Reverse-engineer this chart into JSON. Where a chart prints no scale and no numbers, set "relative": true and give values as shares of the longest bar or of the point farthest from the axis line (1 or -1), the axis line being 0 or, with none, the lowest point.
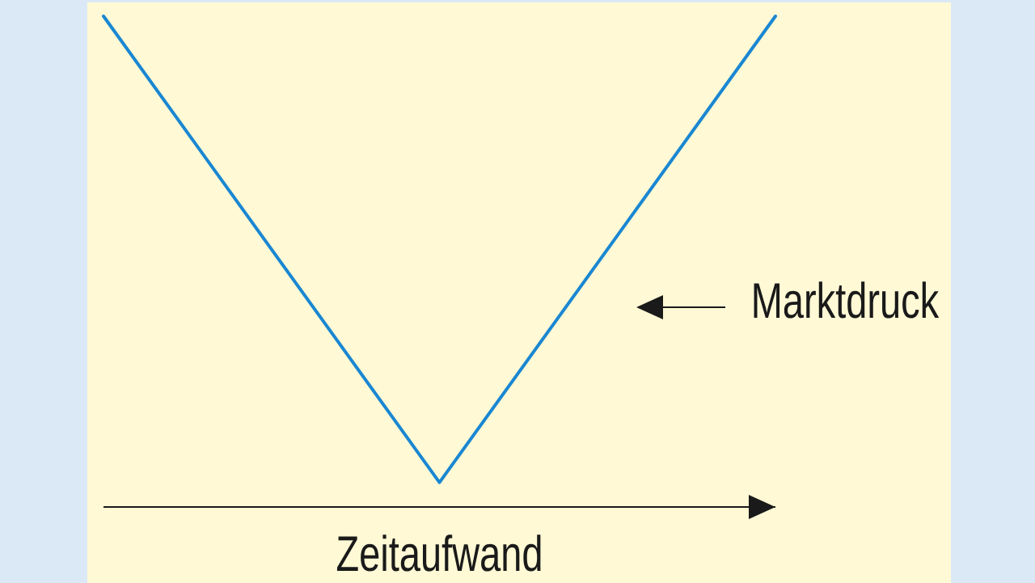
{
  "chart_data": {
    "type": "line",
    "relative": true,
    "categories": [
      null,
      null,
      null
    ],
    "values": [
      1,
      0.05,
      1
    ],
    "color": "#1a87d2",
    "marker": "none",
    "line_style": "solid",
    "xlabel": "Zeitaufwand",
    "annotations": [
      "Marktdruck"
    ]
  }
}
